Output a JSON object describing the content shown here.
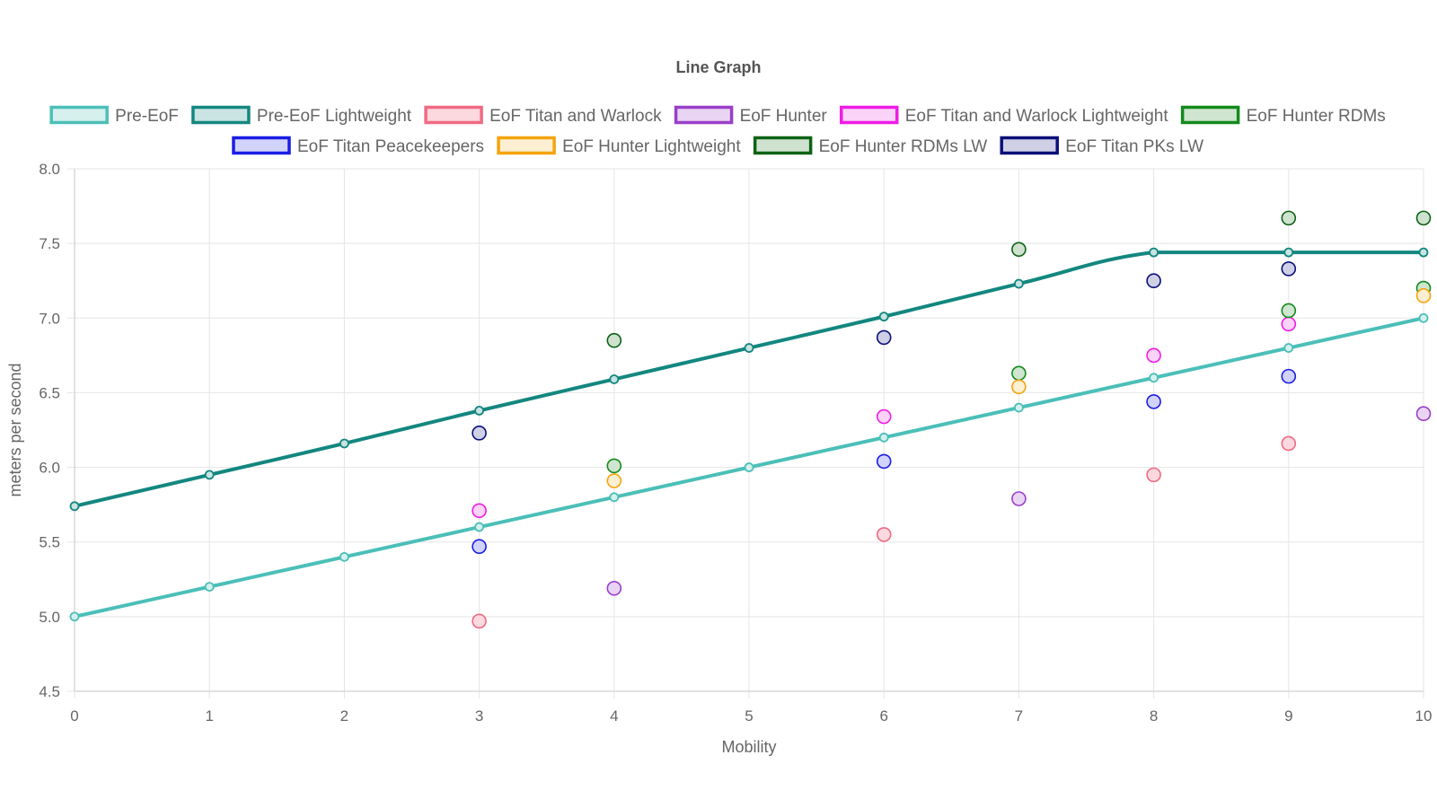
{
  "chart_data": {
    "type": "line",
    "title": "Line Graph",
    "xlabel": "Mobility",
    "ylabel": "meters per second",
    "xlim": [
      0,
      10
    ],
    "ylim": [
      4.5,
      8.0
    ],
    "x_ticks": [
      "0",
      "1",
      "2",
      "3",
      "4",
      "5",
      "6",
      "7",
      "8",
      "9",
      "10"
    ],
    "y_ticks": [
      "4.5",
      "5.0",
      "5.5",
      "6.0",
      "6.5",
      "7.0",
      "7.5",
      "8.0"
    ],
    "grid": true,
    "legend_position": "top",
    "series": [
      {
        "name": "Pre-EoF",
        "kind": "line",
        "color": "#4bbfb8",
        "fill": "#d6f0ee",
        "points": [
          [
            0,
            5.0
          ],
          [
            1,
            5.2
          ],
          [
            2,
            5.4
          ],
          [
            3,
            5.6
          ],
          [
            4,
            5.8
          ],
          [
            5,
            6.0
          ],
          [
            6,
            6.2
          ],
          [
            7,
            6.4
          ],
          [
            8,
            6.6
          ],
          [
            9,
            6.8
          ],
          [
            10,
            7.0
          ]
        ]
      },
      {
        "name": "Pre-EoF Lightweight",
        "kind": "line",
        "color": "#13877f",
        "fill": "#c9e4e2",
        "points": [
          [
            0,
            5.74
          ],
          [
            1,
            5.95
          ],
          [
            2,
            6.16
          ],
          [
            3,
            6.38
          ],
          [
            4,
            6.59
          ],
          [
            5,
            6.8
          ],
          [
            6,
            7.01
          ],
          [
            7,
            7.23
          ],
          [
            8,
            7.44
          ],
          [
            9,
            7.44
          ],
          [
            10,
            7.44
          ]
        ]
      },
      {
        "name": "EoF Titan and Warlock",
        "kind": "scatter",
        "color": "#f06a84",
        "fill": "#fbd9df",
        "points": [
          [
            3,
            4.97
          ],
          [
            6,
            5.55
          ],
          [
            8,
            5.95
          ],
          [
            9,
            6.16
          ]
        ]
      },
      {
        "name": "EoF Hunter",
        "kind": "scatter",
        "color": "#9a3fc8",
        "fill": "#e9d5f3",
        "points": [
          [
            4,
            5.19
          ],
          [
            7,
            5.79
          ],
          [
            10,
            6.36
          ]
        ]
      },
      {
        "name": "EoF Titan and Warlock Lightweight",
        "kind": "scatter",
        "color": "#f01ce6",
        "fill": "#fbd3f8",
        "points": [
          [
            3,
            5.71
          ],
          [
            6,
            6.34
          ],
          [
            8,
            6.75
          ],
          [
            9,
            6.96
          ]
        ]
      },
      {
        "name": "EoF Hunter RDMs",
        "kind": "scatter",
        "color": "#128a1d",
        "fill": "#cfe5cf",
        "points": [
          [
            4,
            6.01
          ],
          [
            7,
            6.63
          ],
          [
            9,
            7.05
          ],
          [
            10,
            7.2
          ]
        ]
      },
      {
        "name": "EoF Titan Peacekeepers",
        "kind": "scatter",
        "color": "#1a1de6",
        "fill": "#d2d3fa",
        "points": [
          [
            3,
            5.47
          ],
          [
            6,
            6.04
          ],
          [
            8,
            6.44
          ],
          [
            9,
            6.61
          ]
        ]
      },
      {
        "name": "EoF Hunter Lightweight",
        "kind": "scatter",
        "color": "#f5a40e",
        "fill": "#fdefd2",
        "points": [
          [
            4,
            5.91
          ],
          [
            7,
            6.54
          ],
          [
            10,
            7.15
          ]
        ]
      },
      {
        "name": "EoF Hunter RDMs LW",
        "kind": "scatter",
        "color": "#0c6315",
        "fill": "#cfe2cf",
        "points": [
          [
            4,
            6.85
          ],
          [
            7,
            7.46
          ],
          [
            9,
            7.67
          ],
          [
            10,
            7.67
          ]
        ]
      },
      {
        "name": "EoF Titan PKs LW",
        "kind": "scatter",
        "color": "#0b0f7a",
        "fill": "#cfd0e6",
        "points": [
          [
            3,
            6.23
          ],
          [
            6,
            6.87
          ],
          [
            8,
            7.25
          ],
          [
            9,
            7.33
          ]
        ]
      }
    ]
  }
}
